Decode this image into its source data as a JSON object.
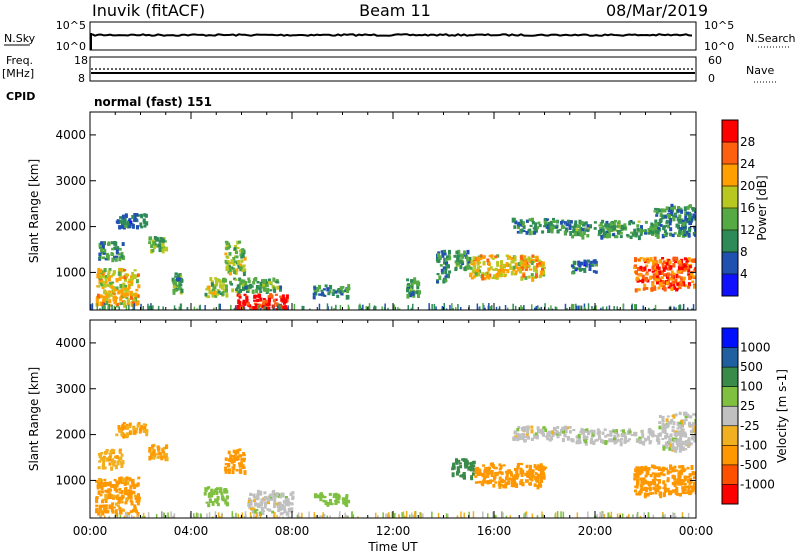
{
  "header": {
    "station": "Inuvik (fitACF)",
    "beam": "Beam 11",
    "date": "08/Mar/2019"
  },
  "aux_panels": {
    "nsky_label": "N.Sky",
    "nsky_top": "10^5",
    "nsky_bottom": "10^0",
    "nsearch_label": "N.Search",
    "nsearch_top": "10^5",
    "nsearch_bottom": "10^0",
    "freq_label_1": "Freq.",
    "freq_label_2": "[MHz]",
    "freq_top": "18",
    "freq_bottom": "8",
    "nave_label": "Nave",
    "nave_top": "60",
    "nave_bottom": "0",
    "cpid_label": "CPID",
    "cpid_value": "normal (fast) 151"
  },
  "colors": {
    "power": [
      "#1010ff",
      "#2050b0",
      "#2e8b57",
      "#55aa44",
      "#b8c820",
      "#ffa000",
      "#ff6010",
      "#ff0000"
    ],
    "velocity": [
      "#ff0000",
      "#ff5000",
      "#ff9800",
      "#f0b020",
      "#c0c0c0",
      "#80c040",
      "#3a8a4a",
      "#2060a0",
      "#0010ff"
    ]
  },
  "chart_data": [
    {
      "type": "heatmap",
      "title": "Power",
      "xlabel": "",
      "ylabel": "Slant Range [km]",
      "xlim": [
        "00:00",
        "24:00"
      ],
      "ylim": [
        180,
        4500
      ],
      "x_ticks": [
        "00:00",
        "04:00",
        "08:00",
        "12:00",
        "16:00",
        "20:00",
        "00:00"
      ],
      "y_ticks": [
        1000,
        2000,
        3000,
        4000
      ],
      "colorbar": {
        "label": "Power [dB]",
        "ticks": [
          "4",
          "8",
          "12",
          "16",
          "20",
          "24",
          "28"
        ],
        "range": [
          0,
          32
        ]
      },
      "patches": [
        {
          "t0": 0.2,
          "t1": 1.9,
          "r0": 300,
          "r1": 1100,
          "value": 20
        },
        {
          "t0": 0.3,
          "t1": 1.3,
          "r0": 1300,
          "r1": 1700,
          "value": 10
        },
        {
          "t0": 1.0,
          "t1": 2.2,
          "r0": 2000,
          "r1": 2300,
          "value": 8
        },
        {
          "t0": 2.3,
          "t1": 3.0,
          "r0": 1500,
          "r1": 1800,
          "value": 14
        },
        {
          "t0": 3.2,
          "t1": 3.6,
          "r0": 600,
          "r1": 1000,
          "value": 12
        },
        {
          "t0": 4.5,
          "t1": 5.4,
          "r0": 500,
          "r1": 900,
          "value": 16
        },
        {
          "t0": 5.3,
          "t1": 6.1,
          "r0": 1000,
          "r1": 1700,
          "value": 16
        },
        {
          "t0": 5.5,
          "t1": 7.5,
          "r0": 600,
          "r1": 900,
          "value": 12
        },
        {
          "t0": 5.8,
          "t1": 7.8,
          "r0": 200,
          "r1": 550,
          "value": 30
        },
        {
          "t0": 8.8,
          "t1": 10.2,
          "r0": 500,
          "r1": 750,
          "value": 10
        },
        {
          "t0": 12.5,
          "t1": 13.0,
          "r0": 500,
          "r1": 900,
          "value": 12
        },
        {
          "t0": 13.7,
          "t1": 14.2,
          "r0": 800,
          "r1": 1500,
          "value": 10
        },
        {
          "t0": 14.3,
          "t1": 15.0,
          "r0": 1100,
          "r1": 1500,
          "value": 12
        },
        {
          "t0": 15.0,
          "t1": 18.0,
          "r0": 900,
          "r1": 1400,
          "value": 20
        },
        {
          "t0": 16.7,
          "t1": 19.0,
          "r0": 1900,
          "r1": 2200,
          "value": 10
        },
        {
          "t0": 19.0,
          "t1": 22.5,
          "r0": 1800,
          "r1": 2150,
          "value": 12
        },
        {
          "t0": 22.3,
          "t1": 24.0,
          "r0": 1800,
          "r1": 2500,
          "value": 10
        },
        {
          "t0": 21.5,
          "t1": 24.0,
          "r0": 650,
          "r1": 1350,
          "value": 26
        },
        {
          "t0": 19.0,
          "t1": 20.0,
          "r0": 1000,
          "r1": 1300,
          "value": 8
        }
      ]
    },
    {
      "type": "heatmap",
      "title": "Velocity",
      "xlabel": "Time UT",
      "ylabel": "Slant Range [km]",
      "xlim": [
        "00:00",
        "24:00"
      ],
      "ylim": [
        180,
        4500
      ],
      "x_ticks": [
        "00:00",
        "04:00",
        "08:00",
        "12:00",
        "16:00",
        "20:00",
        "00:00"
      ],
      "y_ticks": [
        1000,
        2000,
        3000,
        4000
      ],
      "colorbar": {
        "label": "Velocity [m s-1]",
        "ticks": [
          "1000",
          "500",
          "100",
          "25",
          "-25",
          "-100",
          "-500",
          "-1000"
        ]
      },
      "patches": [
        {
          "t0": 0.2,
          "t1": 1.9,
          "r0": 300,
          "r1": 1100,
          "value": -150
        },
        {
          "t0": 0.3,
          "t1": 1.3,
          "r0": 1300,
          "r1": 1700,
          "value": -80
        },
        {
          "t0": 1.0,
          "t1": 2.2,
          "r0": 2000,
          "r1": 2300,
          "value": -100
        },
        {
          "t0": 2.3,
          "t1": 3.0,
          "r0": 1500,
          "r1": 1800,
          "value": -120
        },
        {
          "t0": 4.5,
          "t1": 5.4,
          "r0": 500,
          "r1": 900,
          "value": 50
        },
        {
          "t0": 5.3,
          "t1": 6.1,
          "r0": 1200,
          "r1": 1700,
          "value": -200
        },
        {
          "t0": 6.2,
          "t1": 8.0,
          "r0": 300,
          "r1": 800,
          "value": 0
        },
        {
          "t0": 8.8,
          "t1": 10.2,
          "r0": 500,
          "r1": 750,
          "value": 60
        },
        {
          "t0": 14.3,
          "t1": 15.2,
          "r0": 1100,
          "r1": 1500,
          "value": 300
        },
        {
          "t0": 15.2,
          "t1": 18.0,
          "r0": 900,
          "r1": 1400,
          "value": -200
        },
        {
          "t0": 16.7,
          "t1": 19.0,
          "r0": 1900,
          "r1": 2200,
          "value": 0
        },
        {
          "t0": 19.0,
          "t1": 22.5,
          "r0": 1850,
          "r1": 2150,
          "value": 5
        },
        {
          "t0": 22.5,
          "t1": 24.0,
          "r0": 1700,
          "r1": 2500,
          "value": 0
        },
        {
          "t0": 21.5,
          "t1": 24.0,
          "r0": 700,
          "r1": 1350,
          "value": -300
        }
      ]
    }
  ]
}
